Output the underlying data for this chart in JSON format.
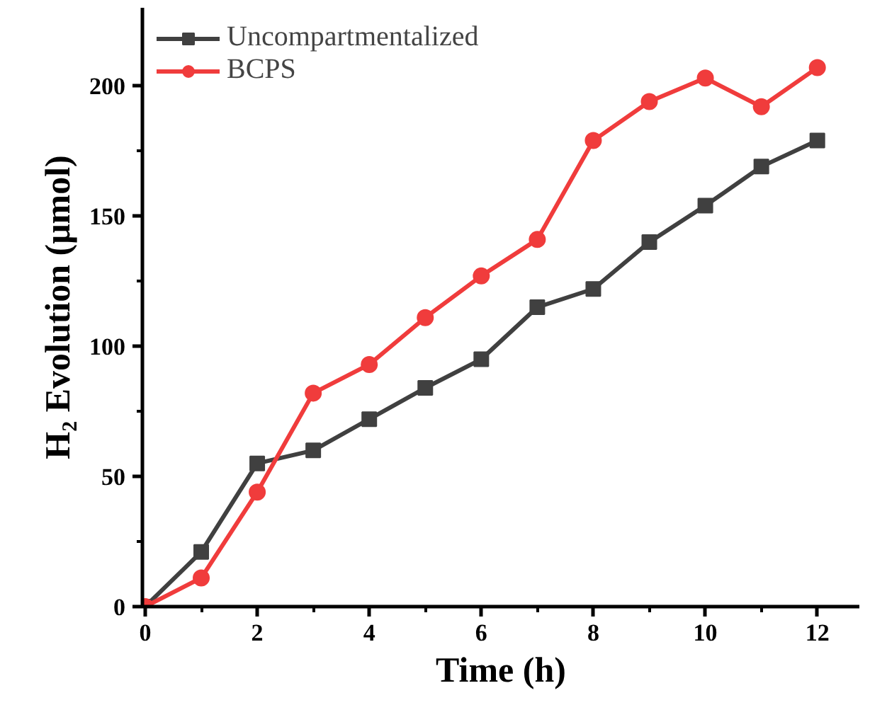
{
  "chart_data": {
    "type": "line",
    "xlabel": "Time (h)",
    "ylabel": "H₂ Evolution (μmol)",
    "x": [
      0,
      1,
      2,
      3,
      4,
      5,
      6,
      7,
      8,
      9,
      10,
      11,
      12
    ],
    "series": [
      {
        "name": "Uncompartmentalized",
        "color": "#404040",
        "marker": "square",
        "values": [
          0,
          21,
          55,
          60,
          72,
          84,
          95,
          115,
          122,
          140,
          154,
          169,
          179
        ]
      },
      {
        "name": "BCPS",
        "color": "#f03c3c",
        "marker": "circle",
        "values": [
          0,
          11,
          44,
          82,
          93,
          111,
          127,
          141,
          179,
          194,
          203,
          192,
          207
        ]
      }
    ],
    "xlim": [
      -0.05,
      12.75
    ],
    "ylim": [
      0,
      230
    ],
    "xticks": [
      0,
      2,
      4,
      6,
      8,
      10,
      12
    ],
    "yticks": [
      0,
      50,
      100,
      150,
      200
    ],
    "grid": false,
    "legend": "top left",
    "line_style": "solid"
  }
}
